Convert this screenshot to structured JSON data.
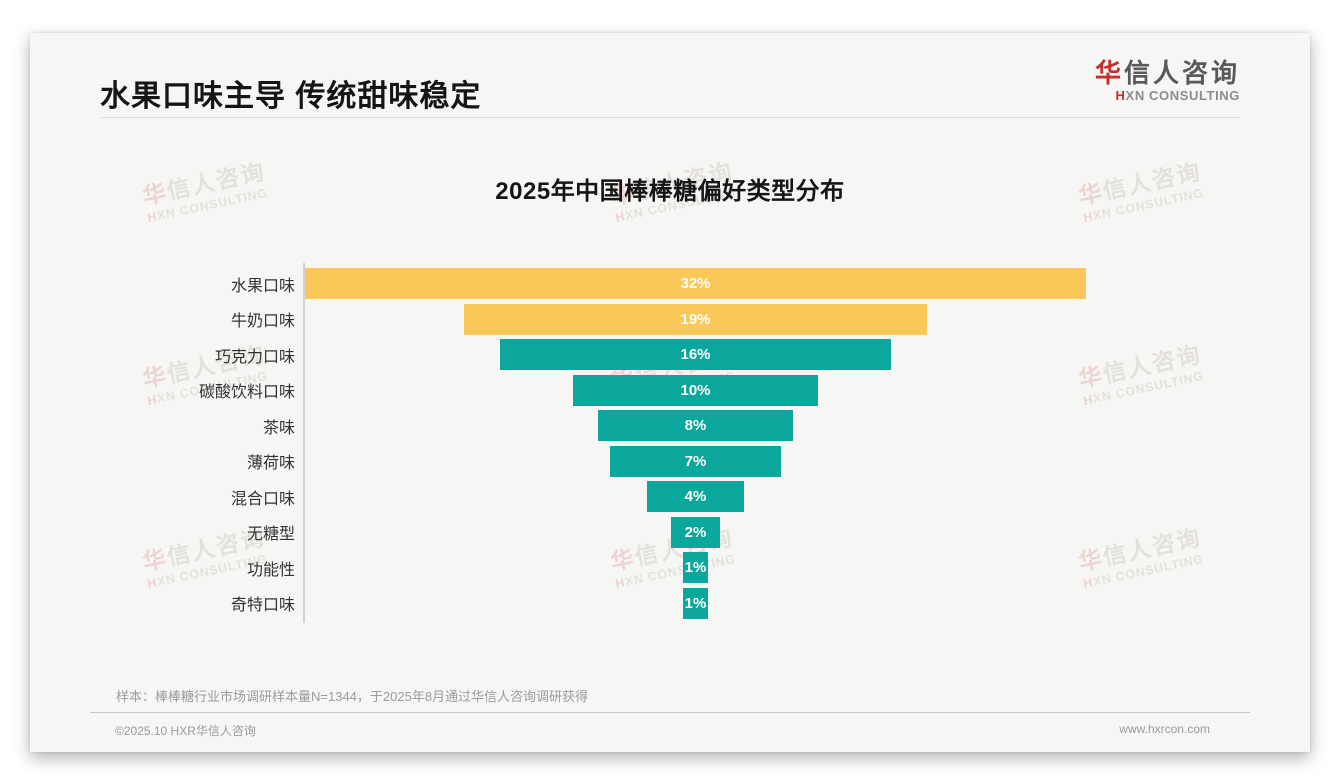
{
  "header": {
    "title": "水果口味主导 传统甜味稳定"
  },
  "logo": {
    "zh_first": "华",
    "zh_rest": "信人咨询",
    "en_first": "H",
    "en_rest": "XN CONSULTING"
  },
  "watermark": {
    "zh_first": "华",
    "zh_rest": "信人咨询",
    "en_first": "H",
    "en_rest": "XN CONSULTING"
  },
  "chart_data": {
    "type": "bar",
    "variant": "horizontal-centered-funnel",
    "title": "2025年中国棒棒糖偏好类型分布",
    "categories": [
      "水果口味",
      "牛奶口味",
      "巧克力口味",
      "碳酸饮料口味",
      "茶味",
      "薄荷味",
      "混合口味",
      "无糖型",
      "功能性",
      "奇特口味"
    ],
    "values": [
      32,
      19,
      16,
      10,
      8,
      7,
      4,
      2,
      1,
      1
    ],
    "unit": "%",
    "colors": [
      "#FAC858",
      "#FAC858",
      "#0BA79C",
      "#0BA79C",
      "#0BA79C",
      "#0BA79C",
      "#0BA79C",
      "#0BA79C",
      "#0BA79C",
      "#0BA79C"
    ],
    "highlight_color": "#FAC858",
    "base_color": "#0BA79C",
    "value_label_color": "#ffffff",
    "xlim": [
      0,
      32
    ],
    "grid": false,
    "legend": false
  },
  "footnote": {
    "text": "样本：棒棒糖行业市场调研样本量N=1344，于2025年8月通过华信人咨询调研获得"
  },
  "footer": {
    "copyright": "©2025.10 HXR华信人咨询",
    "website": "www.hxrcon.com"
  }
}
